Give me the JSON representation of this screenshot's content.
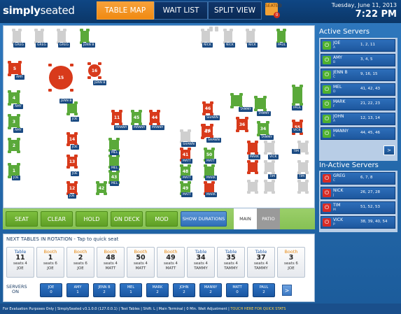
{
  "app": {
    "logo_part1": "simply",
    "logo_part2": "seated"
  },
  "tabs": [
    {
      "label": "TABLE MAP",
      "active": true
    },
    {
      "label": "WAIT LIST",
      "active": false
    },
    {
      "label": "SPLIT VIEW",
      "active": false
    }
  ],
  "notification": {
    "label": "SEATED",
    "count": "0"
  },
  "datetime": {
    "date": "Tuesday, June 11, 2013",
    "time": "7:22 PM"
  },
  "floor": {
    "tables": [
      {
        "n": "",
        "s": "w"
      },
      {
        "n": "",
        "s": "w"
      },
      {
        "n": "",
        "s": "w"
      },
      {
        "n": "",
        "s": "g"
      },
      {
        "n": "",
        "s": "w"
      },
      {
        "n": "",
        "s": "w"
      },
      {
        "n": "",
        "s": "w"
      },
      {
        "n": "",
        "s": "g"
      },
      {
        "n": "5",
        "s": "r"
      },
      {
        "n": "15",
        "s": "r"
      },
      {
        "n": "16",
        "s": "r"
      },
      {
        "n": "4",
        "s": "g"
      },
      {
        "n": "3",
        "s": "g"
      },
      {
        "n": "2",
        "s": "g"
      },
      {
        "n": "1",
        "s": "g"
      },
      {
        "n": "",
        "s": "g"
      },
      {
        "n": "14",
        "s": "r"
      },
      {
        "n": "13",
        "s": "r"
      },
      {
        "n": "12",
        "s": "r"
      },
      {
        "n": "11",
        "s": "r"
      },
      {
        "n": "45",
        "s": "g"
      },
      {
        "n": "44",
        "s": "r"
      },
      {
        "n": "46",
        "s": "r"
      },
      {
        "n": "26",
        "s": "r"
      },
      {
        "n": "",
        "s": "g"
      },
      {
        "n": "",
        "s": "g"
      },
      {
        "n": "36",
        "s": "r"
      },
      {
        "n": "34",
        "s": "g"
      },
      {
        "n": "",
        "s": "g"
      },
      {
        "n": "55",
        "s": "r"
      },
      {
        "n": "",
        "s": "w"
      },
      {
        "n": "47",
        "s": "r"
      },
      {
        "n": "",
        "s": "g"
      },
      {
        "n": "",
        "s": "g"
      },
      {
        "n": "43",
        "s": "g"
      },
      {
        "n": "42",
        "s": "g"
      },
      {
        "n": "41",
        "s": "r"
      },
      {
        "n": "48",
        "s": "g"
      },
      {
        "n": "49",
        "s": "g"
      },
      {
        "n": "50",
        "s": "g"
      },
      {
        "n": "",
        "s": "g"
      },
      {
        "n": "",
        "s": "r"
      },
      {
        "n": "",
        "s": "r"
      },
      {
        "n": "",
        "s": "r"
      },
      {
        "n": "",
        "s": "w"
      },
      {
        "n": "",
        "s": "w"
      },
      {
        "n": "",
        "s": "w"
      },
      {
        "n": "",
        "s": "w"
      },
      {
        "n": "",
        "s": "w"
      },
      {
        "n": "",
        "s": "w"
      },
      {
        "n": "",
        "s": "w"
      },
      {
        "n": "",
        "s": "w"
      }
    ],
    "servers": [
      "GREG",
      "GREG",
      "GREG",
      "JENN B",
      "NICK",
      "NICK",
      "NICK",
      "PAUL",
      "AMY",
      "JENN B",
      "JENN B",
      "AMY",
      "AMY",
      "JOE",
      "JOE",
      "JOE",
      "JOE",
      "JOE",
      "MANNY",
      "MANNY",
      "MANNY",
      "SHAWN",
      "SHAWN",
      "TAMMY",
      "TAMMY",
      "TAMMY",
      "PAUL",
      "VICK",
      "TIM",
      "SHAWN",
      "MEL",
      "MEL",
      "MEL",
      "MATT",
      "MATT",
      "MATT",
      "MATT",
      "MARK",
      "MARK",
      "MARK",
      "VICK",
      "TIM",
      "TIM"
    ]
  },
  "actions": {
    "seat": "SEAT",
    "clear": "CLEAR",
    "hold": "HOLD",
    "on_deck": "ON DECK",
    "mod": "MOD",
    "show_durations": "SHOW DURATIONS",
    "main": "MAIN",
    "patio": "PATIO"
  },
  "rotation": {
    "title": "NEXT TABLES IN ROTATION - Tap to quick seat",
    "cards": [
      {
        "kind": "Table",
        "num": "11",
        "seats": "seats 4",
        "server": "JOE"
      },
      {
        "kind": "Booth",
        "num": "1",
        "seats": "seats 6",
        "server": "JOE"
      },
      {
        "kind": "Booth",
        "num": "2",
        "seats": "seats 6",
        "server": "JOE"
      },
      {
        "kind": "Booth",
        "num": "48",
        "seats": "seats 4",
        "server": "MATT"
      },
      {
        "kind": "Booth",
        "num": "50",
        "seats": "seats 4",
        "server": "MATT"
      },
      {
        "kind": "Booth",
        "num": "49",
        "seats": "seats 4",
        "server": "MATT"
      },
      {
        "kind": "Table",
        "num": "34",
        "seats": "seats 4",
        "server": "TAMMY"
      },
      {
        "kind": "Table",
        "num": "35",
        "seats": "seats 4",
        "server": "TAMMY"
      },
      {
        "kind": "Table",
        "num": "37",
        "seats": "seats 4",
        "server": "TAMMY"
      },
      {
        "kind": "Booth",
        "num": "3",
        "seats": "seats 6",
        "server": "JOE"
      }
    ],
    "servers_on_label1": "SERVERS",
    "servers_on_label2": "ON",
    "chips": [
      {
        "name": "JOE",
        "val": "0"
      },
      {
        "name": "AMY",
        "val": "1"
      },
      {
        "name": "JENN B",
        "val": "2"
      },
      {
        "name": "MEL",
        "val": "1"
      },
      {
        "name": "MARK",
        "val": "2"
      },
      {
        "name": "JOHN",
        "val": "2"
      },
      {
        "name": "MANNY",
        "val": "2"
      },
      {
        "name": "MATT",
        "val": "0"
      },
      {
        "name": "PAUL",
        "val": "2"
      }
    ],
    "next_label": ">"
  },
  "active_servers": {
    "title": "Active Servers",
    "items": [
      {
        "name": "JOE",
        "initial": "A",
        "tables": "1, 2, 11"
      },
      {
        "name": "AMY",
        "initial": "B",
        "tables": "3, 4, 5"
      },
      {
        "name": "JENN B",
        "initial": "C",
        "tables": "9, 16, 15"
      },
      {
        "name": "MEL",
        "initial": "D",
        "tables": "41, 42, 43"
      },
      {
        "name": "MARK",
        "initial": "F",
        "tables": "21, 22, 23"
      },
      {
        "name": "JOHN",
        "initial": "A",
        "tables": "12, 13, 14"
      },
      {
        "name": "MANNY",
        "initial": "E",
        "tables": "44, 45, 46"
      }
    ],
    "more": ">"
  },
  "inactive_servers": {
    "title": "In-Active Servers",
    "items": [
      {
        "name": "GREG",
        "initial": "C",
        "tables": "6, 7, 8"
      },
      {
        "name": "NICK",
        "initial": "J",
        "tables": "26, 27, 28"
      },
      {
        "name": "TIM",
        "initial": "M",
        "tables": "51, 52, 53"
      },
      {
        "name": "VICK",
        "initial": "P",
        "tables": "38, 39, 40, 54"
      }
    ]
  },
  "footer": {
    "text": "For Evaluation Purposes Only | SimplySeated v3.1.0.0 (127.0.0.1) | Test Tables | Shift: L | Main Terminal | 0 Min. Wait Adjustment |",
    "stats": "TOUCH HERE FOR QUICK STATS"
  }
}
